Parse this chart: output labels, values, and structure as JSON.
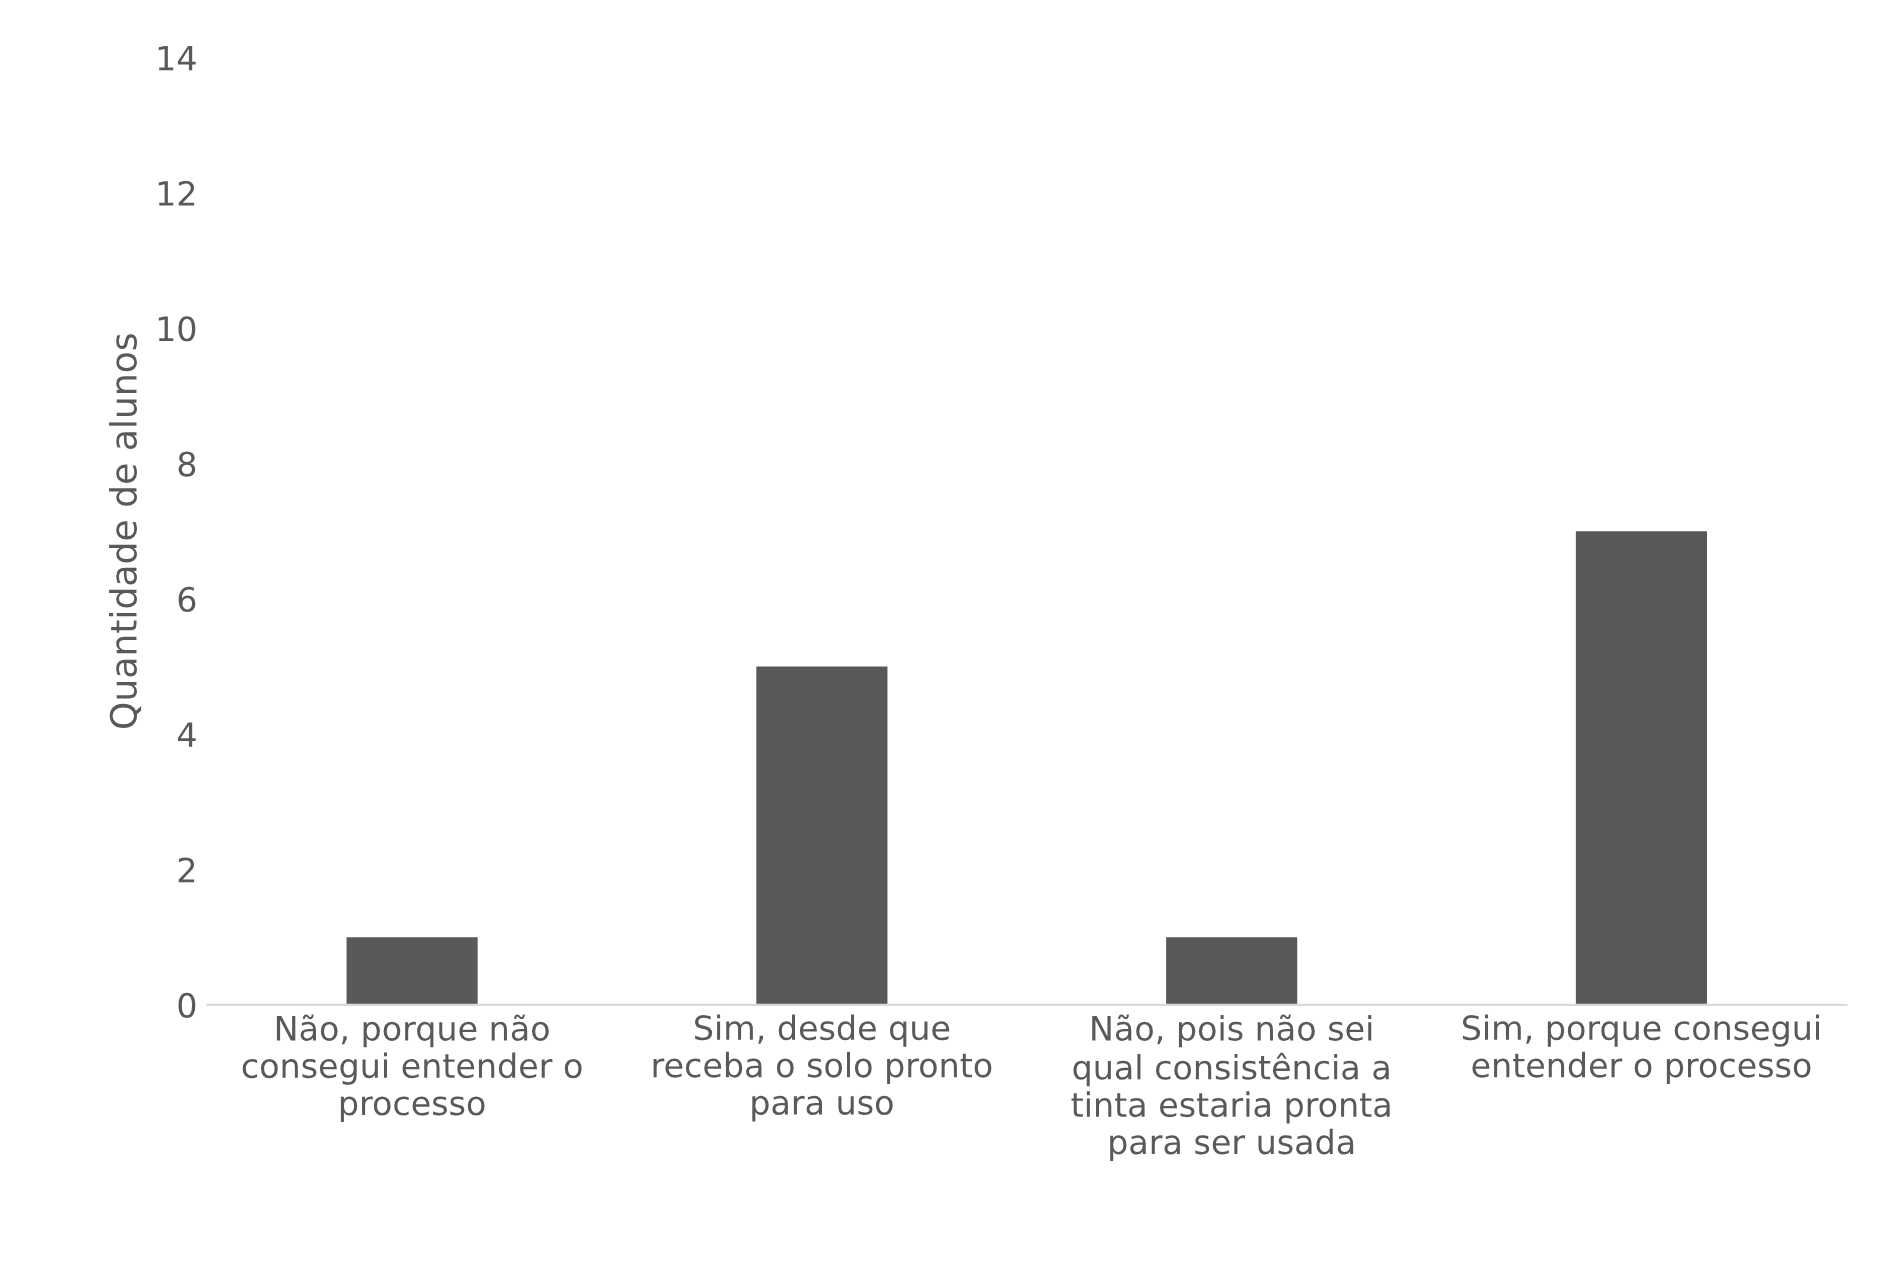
{
  "chart_data": {
    "type": "bar",
    "ylabel": "Quantidade de alunos",
    "categories": [
      "Não, porque não consegui entender o processo",
      "Sim, desde que receba o solo pronto para uso",
      "Não, pois não sei qual consistência a tinta estaria pronta para ser usada",
      "Sim, porque consegui entender o processo"
    ],
    "values": [
      1,
      5,
      1,
      7
    ],
    "color": "#595959",
    "ylim": [
      0,
      14
    ],
    "yticks": [
      0,
      2,
      4,
      6,
      8,
      10,
      12,
      14
    ],
    "grid": false
  }
}
